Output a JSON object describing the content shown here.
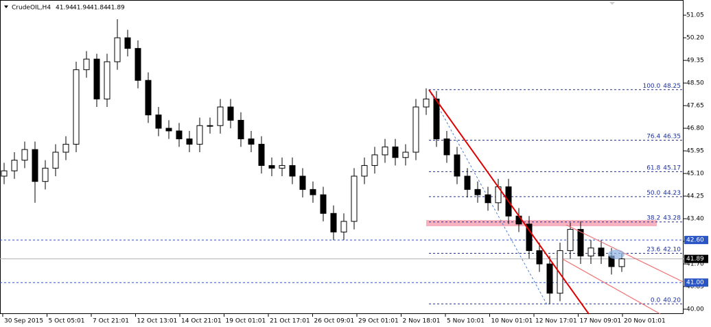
{
  "chart_data": {
    "type": "candlestick",
    "title": "CrudeOIL,H4",
    "header_ohlc": [
      41.94,
      41.94,
      41.84,
      41.89
    ],
    "categories": [
      "30 Sep 2015",
      "5 Oct 05:01",
      "7 Oct 21:01",
      "12 Oct 13:01",
      "14 Oct 21:01",
      "19 Oct 01:01",
      "21 Oct 17:01",
      "26 Oct 09:01",
      "29 Oct 01:01",
      "2 Nov 18:01",
      "5 Nov 10:01",
      "10 Nov 01:01",
      "12 Nov 17:01",
      "17 Nov 09:01",
      "20 Nov 01:01"
    ],
    "open": [
      45.0,
      45.2,
      45.6,
      46.0,
      44.8,
      45.3,
      45.9,
      46.2,
      49.0,
      49.4,
      47.9,
      49.3,
      50.2,
      49.8,
      48.6,
      47.3,
      46.8,
      46.7,
      46.4,
      46.2,
      46.9,
      46.9,
      47.6,
      47.1,
      46.4,
      46.2,
      45.4,
      45.3,
      45.4,
      45.0,
      44.5,
      44.3,
      43.6,
      42.9,
      43.3,
      45.0,
      45.4,
      45.8,
      46.1,
      45.7,
      45.9,
      47.6,
      47.9,
      46.4,
      45.8,
      45.0,
      44.5,
      44.3,
      44.0,
      44.6,
      43.5,
      43.2,
      42.2,
      41.7,
      40.6,
      42.2,
      43.0,
      42.0,
      42.3,
      42.0,
      41.6
    ],
    "high": [
      45.5,
      45.9,
      46.3,
      46.3,
      45.6,
      46.2,
      46.5,
      49.3,
      49.7,
      49.6,
      49.6,
      50.9,
      50.5,
      50.1,
      48.9,
      47.6,
      47.1,
      47.0,
      46.7,
      47.2,
      47.2,
      47.9,
      47.9,
      47.4,
      46.7,
      46.5,
      45.7,
      45.7,
      45.7,
      45.3,
      44.8,
      44.6,
      43.9,
      43.6,
      45.3,
      45.7,
      46.1,
      46.4,
      46.4,
      46.2,
      47.9,
      48.3,
      48.2,
      46.7,
      46.1,
      45.3,
      44.8,
      44.6,
      44.9,
      44.9,
      43.8,
      43.5,
      42.5,
      42.0,
      42.5,
      43.25,
      43.3,
      42.6,
      42.6,
      42.3,
      42.1
    ],
    "low": [
      44.7,
      44.9,
      45.3,
      44.0,
      44.5,
      45.0,
      45.6,
      45.9,
      48.7,
      47.6,
      47.6,
      49.0,
      49.5,
      48.3,
      47.0,
      46.5,
      46.4,
      46.1,
      45.9,
      45.9,
      46.6,
      46.6,
      46.8,
      46.1,
      45.9,
      45.1,
      45.0,
      45.0,
      44.7,
      44.2,
      44.0,
      43.3,
      42.6,
      42.6,
      43.0,
      44.7,
      45.1,
      45.5,
      45.4,
      45.4,
      45.6,
      47.3,
      46.1,
      45.5,
      44.7,
      44.2,
      44.0,
      43.7,
      43.7,
      43.2,
      42.9,
      41.9,
      41.4,
      40.2,
      40.3,
      41.9,
      41.7,
      41.7,
      41.7,
      41.3,
      41.4
    ],
    "close": [
      45.2,
      45.6,
      46.0,
      44.8,
      45.3,
      45.9,
      46.2,
      49.0,
      49.4,
      47.9,
      49.3,
      50.2,
      49.8,
      48.6,
      47.3,
      46.8,
      46.7,
      46.4,
      46.2,
      46.9,
      46.9,
      47.6,
      47.1,
      46.4,
      46.2,
      45.4,
      45.3,
      45.4,
      45.0,
      44.5,
      44.3,
      43.6,
      42.9,
      43.3,
      45.0,
      45.4,
      45.8,
      46.1,
      45.7,
      45.9,
      47.6,
      47.9,
      46.4,
      45.8,
      45.0,
      44.5,
      44.3,
      44.0,
      44.6,
      43.5,
      43.2,
      42.2,
      41.7,
      40.6,
      42.2,
      43.0,
      42.0,
      42.3,
      42.0,
      41.6,
      41.89
    ],
    "ylim": [
      39.82,
      51.62
    ],
    "yticks": [
      51.05,
      {
        "value": 50.2,
        "label": "50.20"
      },
      49.35,
      {
        "value": 48.5,
        "label": "48.50"
      },
      47.65,
      {
        "value": 46.8,
        "label": "46.80"
      },
      45.95,
      {
        "value": 45.1,
        "label": "45.10"
      },
      44.25,
      {
        "value": 43.4,
        "label": "43.40"
      },
      42.55,
      {
        "value": 41.7,
        "label": "41.70"
      },
      40.85,
      {
        "value": 40,
        "label": "40.00"
      }
    ],
    "price_lines": [
      {
        "value": 42.6,
        "label": "42.60"
      },
      {
        "value": 41,
        "label": "41.00"
      }
    ],
    "current_price": {
      "value": 41.89,
      "label": "41.89"
    },
    "fibonacci": [
      {
        "level": "100.0",
        "price": 48.25
      },
      {
        "level": "76.4",
        "price": 46.35
      },
      {
        "level": "61.8",
        "price": 45.17
      },
      {
        "level": "50.0",
        "price": 44.23
      },
      {
        "level": "38.2",
        "price": 43.28
      },
      {
        "level": "23.6",
        "price": {
          "value": 42.1,
          "label": "42.10"
        }
      },
      {
        "level": "0.0",
        "price": {
          "value": 40.2,
          "label": "40.20"
        }
      }
    ]
  }
}
